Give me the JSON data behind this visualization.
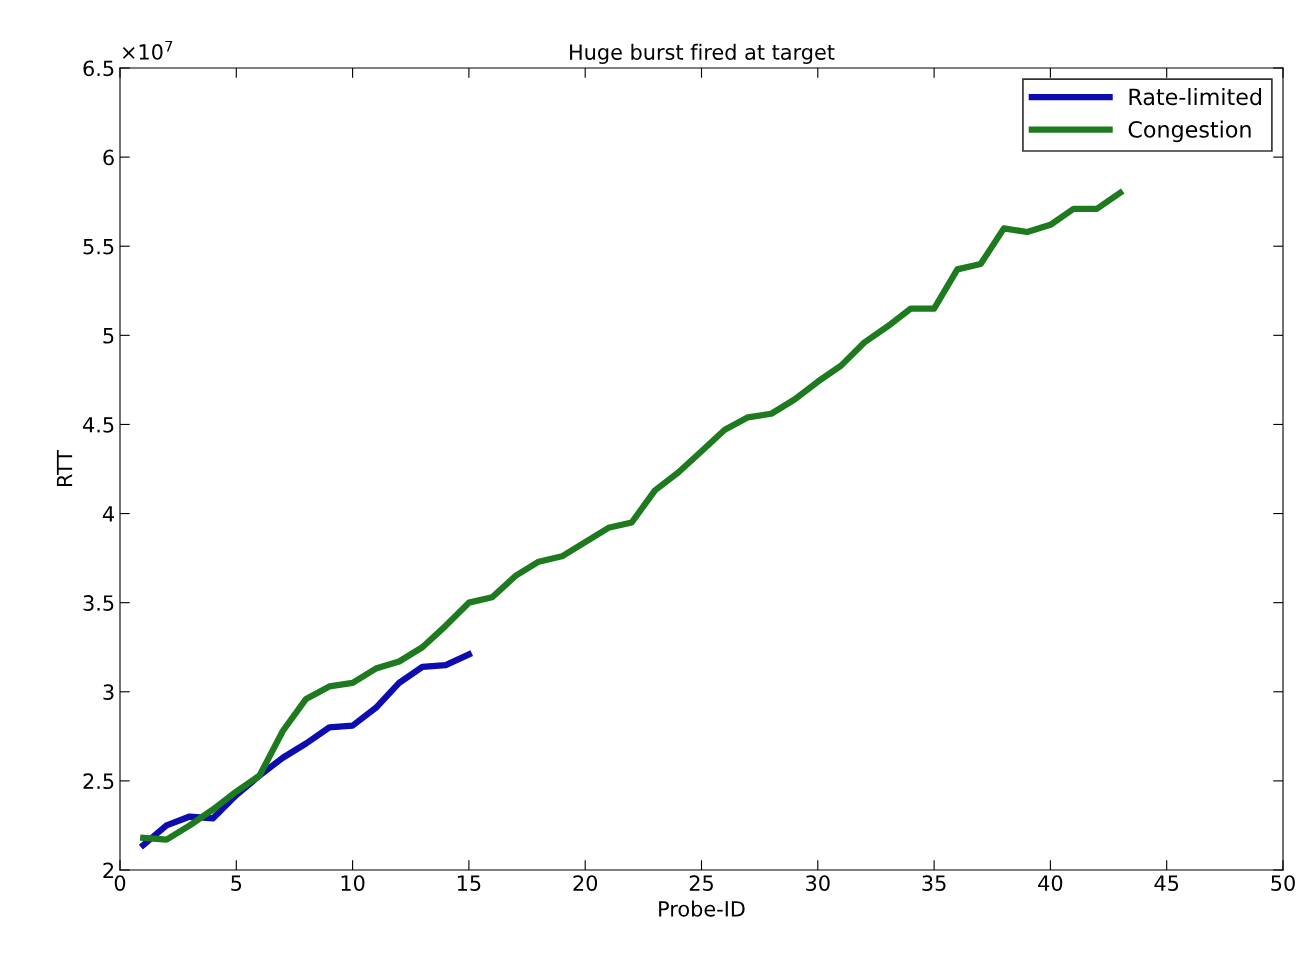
{
  "chart_data": {
    "type": "line",
    "title": "Huge burst fired at target",
    "xlabel": "Probe-ID",
    "ylabel": "RTT",
    "annotations": [
      "×10$^{7}$"
    ],
    "xlim": [
      0,
      50
    ],
    "xticks": [
      0,
      5,
      10,
      15,
      20,
      25,
      30,
      35,
      40,
      45,
      50
    ],
    "ylim": [
      2,
      6.5
    ],
    "yticks": [
      2,
      2.5,
      3,
      3.5,
      4,
      4.5,
      5,
      5.5,
      6,
      6.5
    ],
    "grid": false,
    "legend": "top right",
    "line_style": "solid",
    "marker": "none",
    "series": [
      {
        "name": "Rate-limited",
        "color": "#0c0cb0",
        "x": [
          1,
          2,
          3,
          4,
          5,
          6,
          7,
          8,
          9,
          10,
          11,
          12,
          13,
          14,
          15
        ],
        "values": [
          2.14,
          2.25,
          2.3,
          2.29,
          2.42,
          2.53,
          2.63,
          2.71,
          2.8,
          2.81,
          2.91,
          3.05,
          3.14,
          3.15,
          3.21
        ]
      },
      {
        "name": "Congestion",
        "color": "#1e7a1e",
        "x": [
          1,
          2,
          3,
          4,
          5,
          6,
          7,
          8,
          9,
          10,
          11,
          12,
          13,
          14,
          15,
          16,
          17,
          18,
          19,
          20,
          21,
          22,
          23,
          24,
          25,
          26,
          27,
          28,
          29,
          30,
          31,
          32,
          33,
          34,
          35,
          36,
          37,
          38,
          39,
          40,
          41,
          42,
          43
        ],
        "values": [
          2.18,
          2.17,
          2.25,
          2.34,
          2.44,
          2.53,
          2.78,
          2.96,
          3.03,
          3.05,
          3.13,
          3.17,
          3.25,
          3.37,
          3.5,
          3.53,
          3.65,
          3.73,
          3.76,
          3.84,
          3.92,
          3.95,
          4.13,
          4.23,
          4.35,
          4.47,
          4.54,
          4.56,
          4.64,
          4.74,
          4.83,
          4.96,
          5.05,
          5.15,
          5.15,
          5.37,
          5.4,
          5.6,
          5.58,
          5.62,
          5.71,
          5.71,
          5.8
        ]
      }
    ]
  }
}
